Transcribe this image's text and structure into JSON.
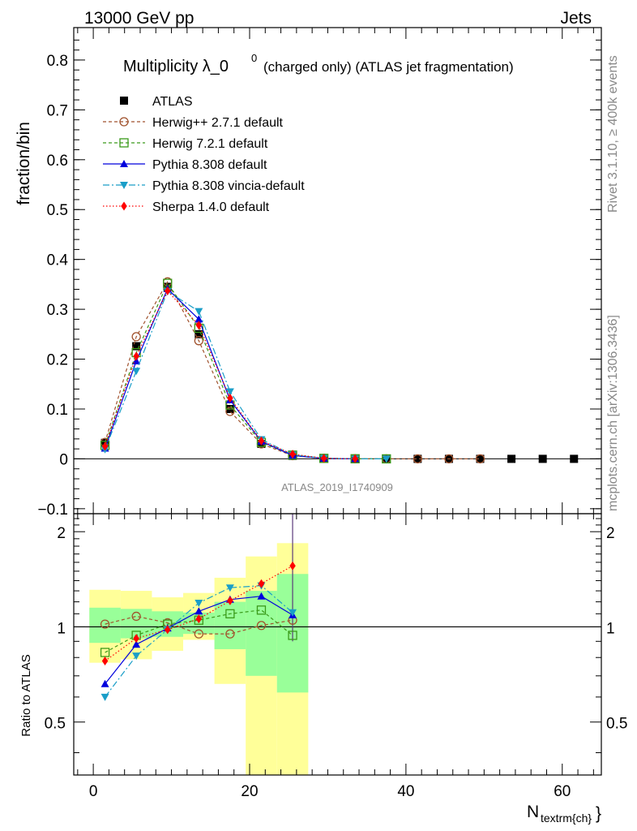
{
  "header": {
    "left": "13000 GeV pp",
    "right": "Jets"
  },
  "side_labels": {
    "rivet": "Rivet 3.1.10, ≥ 400k events",
    "mcplots": "mcplots.cern.ch [arXiv:1306.3436]"
  },
  "colors": {
    "atlas": "#000000",
    "herwigpp": "#a0522d",
    "herwig7": "#3a9a1a",
    "pythia": "#0000dd",
    "vincia": "#1a9ec8",
    "sherpa": "#ff0000",
    "band_inner": "#99ff99",
    "band_outer": "#ffff99"
  },
  "chart_data": [
    {
      "type": "line",
      "title_main": "Multiplicity λ_0",
      "title_sup": "0",
      "title_rest": "(charged only) (ATLAS jet fragmentation)",
      "watermark": "ATLAS_2019_I1740909",
      "ylabel": "fraction/bin",
      "xlim": [
        -2.5,
        65
      ],
      "ylim": [
        -0.11,
        0.865
      ],
      "xticks": [
        0,
        20,
        40,
        60
      ],
      "yticks": [
        -0.1,
        0,
        0.1,
        0.2,
        0.3,
        0.4,
        0.5,
        0.6,
        0.7,
        0.8
      ],
      "ytick_labels": [
        "−0.1",
        "0",
        "0.1",
        "0.2",
        "0.3",
        "0.4",
        "0.5",
        "0.6",
        "0.7",
        "0.8"
      ],
      "legend_position": "top-left",
      "series": [
        {
          "name": "ATLAS",
          "key": "atlas",
          "marker": "square",
          "x": [
            1.5,
            5.5,
            9.5,
            13.5,
            17.5,
            21.5,
            25.5,
            29.5,
            33.5,
            37.5,
            41.5,
            45.5,
            49.5,
            53.5,
            57.5,
            61.5
          ],
          "values": [
            0.032,
            0.226,
            0.345,
            0.25,
            0.1,
            0.03,
            0.006,
            0.0008,
            0.0001,
            0,
            0,
            0,
            0,
            0,
            0,
            0
          ]
        },
        {
          "name": "Herwig++ 2.7.1 default",
          "key": "herwigpp",
          "marker": "circle-open",
          "dash": "4,3",
          "x": [
            1.5,
            5.5,
            9.5,
            13.5,
            17.5,
            21.5,
            25.5,
            29.5,
            33.5,
            37.5,
            41.5,
            45.5,
            49.5
          ],
          "values": [
            0.033,
            0.245,
            0.355,
            0.237,
            0.095,
            0.03,
            0.0064,
            0.001,
            0.0002,
            0,
            0,
            0,
            0
          ]
        },
        {
          "name": "Herwig 7.2.1 default",
          "key": "herwig7",
          "marker": "square-open",
          "dash": "4,3",
          "x": [
            1.5,
            5.5,
            9.5,
            13.5,
            17.5,
            21.5,
            25.5,
            29.5,
            33.5,
            37.5
          ],
          "values": [
            0.027,
            0.213,
            0.352,
            0.262,
            0.108,
            0.033,
            0.0075,
            0.001,
            0.0002,
            0
          ]
        },
        {
          "name": "Pythia 8.308 default",
          "key": "pythia",
          "marker": "triangle-up",
          "x": [
            1.5,
            5.5,
            9.5,
            13.5,
            17.5,
            21.5,
            25.5,
            29.5,
            33.5
          ],
          "values": [
            0.021,
            0.196,
            0.341,
            0.28,
            0.118,
            0.035,
            0.0068,
            0.0009,
            0.0001
          ]
        },
        {
          "name": "Pythia 8.308 vincia-default",
          "key": "vincia",
          "marker": "triangle-down",
          "dash": "8,3,2,3",
          "x": [
            1.5,
            5.5,
            9.5,
            13.5,
            17.5,
            21.5,
            25.5,
            29.5,
            33.5,
            37.5
          ],
          "values": [
            0.019,
            0.176,
            0.336,
            0.296,
            0.135,
            0.039,
            0.0082,
            0.0012,
            0.0002,
            0
          ]
        },
        {
          "name": "Sherpa 1.4.0 default",
          "key": "sherpa",
          "marker": "diamond",
          "dash": "1.5,2.5",
          "x": [
            1.5,
            5.5,
            9.5,
            13.5,
            17.5,
            21.5,
            25.5,
            29.5,
            33.5
          ],
          "values": [
            0.025,
            0.206,
            0.337,
            0.268,
            0.122,
            0.036,
            0.0094,
            0.0011,
            0.0002
          ]
        }
      ]
    },
    {
      "type": "line",
      "ylabel": "Ratio to ATLAS",
      "xlabel_main": "N",
      "xlabel_sub": "textrm{ch}",
      "xlim": [
        -2.5,
        65
      ],
      "ylim": [
        0.34,
        2.28
      ],
      "scale": "log",
      "xticks": [
        0,
        20,
        40,
        60
      ],
      "yticks_major": [
        0.5,
        1,
        2
      ],
      "bins": [
        [
          -0.5,
          3.5
        ],
        [
          3.5,
          7.5
        ],
        [
          7.5,
          11.5
        ],
        [
          11.5,
          15.5
        ],
        [
          15.5,
          19.5
        ],
        [
          19.5,
          23.5
        ],
        [
          23.5,
          27.5
        ]
      ],
      "band_inner": [
        [
          0.89,
          1.15
        ],
        [
          0.92,
          1.14
        ],
        [
          0.93,
          1.12
        ],
        [
          0.95,
          1.11
        ],
        [
          0.85,
          1.2
        ],
        [
          0.7,
          1.3
        ],
        [
          0.62,
          1.47
        ]
      ],
      "band_outer": [
        [
          0.77,
          1.31
        ],
        [
          0.79,
          1.3
        ],
        [
          0.84,
          1.24
        ],
        [
          0.91,
          1.28
        ],
        [
          0.66,
          1.43
        ],
        [
          0.34,
          1.67
        ],
        [
          0.34,
          1.84
        ]
      ],
      "series": [
        {
          "name": "Herwig++ 2.7.1 default",
          "key": "herwigpp",
          "x": [
            1.5,
            5.5,
            9.5,
            13.5,
            17.5,
            21.5,
            25.5
          ],
          "values": [
            1.02,
            1.08,
            1.03,
            0.95,
            0.95,
            1.01,
            1.05
          ]
        },
        {
          "name": "Herwig 7.2.1 default",
          "key": "herwig7",
          "x": [
            1.5,
            5.5,
            9.5,
            13.5,
            17.5,
            21.5,
            25.5
          ],
          "values": [
            0.83,
            0.94,
            1.02,
            1.05,
            1.1,
            1.13,
            0.94
          ]
        },
        {
          "name": "Pythia 8.308 default",
          "key": "pythia",
          "x": [
            1.5,
            5.5,
            9.5,
            13.5,
            17.5,
            21.5,
            25.5
          ],
          "values": [
            0.66,
            0.88,
            0.99,
            1.12,
            1.22,
            1.25,
            1.09
          ]
        },
        {
          "name": "Pythia 8.308 vincia-default",
          "key": "vincia",
          "x": [
            1.5,
            5.5,
            9.5,
            13.5,
            17.5,
            21.5,
            25.5
          ],
          "values": [
            0.6,
            0.81,
            0.98,
            1.19,
            1.33,
            1.35,
            1.11
          ]
        },
        {
          "name": "Sherpa 1.4.0 default",
          "key": "sherpa",
          "x": [
            1.5,
            5.5,
            9.5,
            13.5,
            17.5,
            21.5,
            25.5
          ],
          "values": [
            0.78,
            0.92,
            0.98,
            1.06,
            1.21,
            1.37,
            1.56
          ]
        }
      ]
    }
  ]
}
